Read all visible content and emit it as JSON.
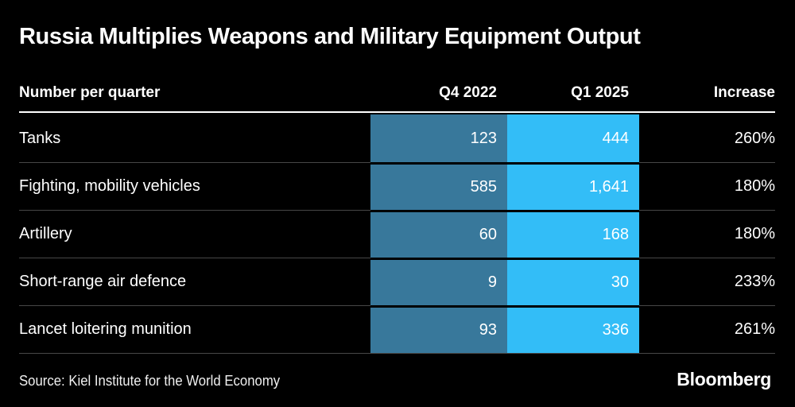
{
  "header": {
    "title": "Russia Multiplies Weapons and Military Equipment Output"
  },
  "table": {
    "columns": {
      "label": "Number per quarter",
      "q4": "Q4 2022",
      "q1": "Q1 2025",
      "increase": "Increase"
    },
    "rows": [
      {
        "label": "Tanks",
        "q4": "123",
        "q1": "444",
        "increase": "260%"
      },
      {
        "label": "Fighting, mobility vehicles",
        "q4": "585",
        "q1": "1,641",
        "increase": "180%"
      },
      {
        "label": "Artillery",
        "q4": "60",
        "q1": "168",
        "increase": "180%"
      },
      {
        "label": "Short-range air defence",
        "q4": "9",
        "q1": "30",
        "increase": "233%"
      },
      {
        "label": "Lancet loitering munition",
        "q4": "93",
        "q1": "336",
        "increase": "261%"
      }
    ]
  },
  "footer": {
    "source": "Source: Kiel Institute for the World Economy",
    "brand": "Bloomberg"
  },
  "colors": {
    "background": "#000000",
    "q4_column": "#38789B",
    "q1_column": "#33BDF7",
    "divider": "#474747",
    "header_rule": "#ffffff",
    "text": "#ffffff"
  },
  "chart_data": {
    "type": "table",
    "title": "Russia Multiplies Weapons and Military Equipment Output",
    "subtitle": "Number per quarter",
    "columns": [
      "Number per quarter",
      "Q4 2022",
      "Q1 2025",
      "Increase"
    ],
    "categories": [
      "Tanks",
      "Fighting, mobility vehicles",
      "Artillery",
      "Short-range air defence",
      "Lancet loitering munition"
    ],
    "series": [
      {
        "name": "Q4 2022",
        "values": [
          123,
          585,
          60,
          9,
          93
        ]
      },
      {
        "name": "Q1 2025",
        "values": [
          444,
          1641,
          168,
          30,
          336
        ]
      },
      {
        "name": "Increase",
        "values": [
          "260%",
          "180%",
          "180%",
          "233%",
          "261%"
        ]
      }
    ],
    "source": "Source: Kiel Institute for the World Economy",
    "layout_hints": {
      "theme": "dark",
      "q4_column_highlight": "#38789B",
      "q1_column_highlight": "#33BDF7",
      "value_alignment": "right"
    }
  }
}
